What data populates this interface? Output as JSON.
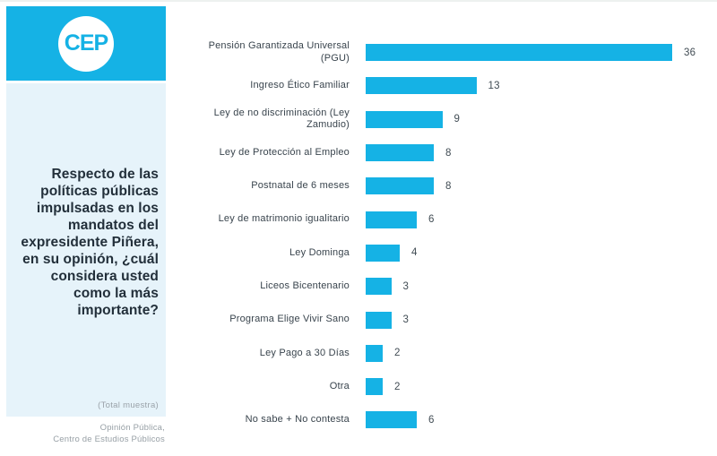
{
  "brand": {
    "logo_text": "CEP",
    "percent_badge": "%"
  },
  "sidebar": {
    "question": "Respecto de las políticas públicas impulsadas en los mandatos del expresidente Piñera, en su opinión, ¿cuál considera usted como la más importante?",
    "sample_note": "(Total muestra)",
    "source_line1": "Opinión Pública,",
    "source_line2": "Centro de Estudios Públicos"
  },
  "colors": {
    "accent": "#15B2E5",
    "panel_bg": "#E6F3FA",
    "question_text": "#222F3A",
    "label_text": "#39444D",
    "muted_text": "#98A0A6"
  },
  "chart_data": {
    "type": "bar",
    "orientation": "horizontal",
    "title": "",
    "xlabel": "",
    "ylabel": "",
    "xlim": [
      0,
      38
    ],
    "grid": false,
    "legend": false,
    "unit": "percent",
    "categories": [
      "Pensión Garantizada Universal (PGU)",
      "Ingreso Ético Familiar",
      "Ley de no discriminación (Ley Zamudio)",
      "Ley de Protección al Empleo",
      "Postnatal de 6 meses",
      "Ley de matrimonio igualitario",
      "Ley Dominga",
      "Liceos Bicentenario",
      "Programa Elige Vivir Sano",
      "Ley Pago a 30 Días",
      "Otra",
      "No sabe + No contesta"
    ],
    "values": [
      36,
      13,
      9,
      8,
      8,
      6,
      4,
      3,
      3,
      2,
      2,
      6
    ]
  }
}
